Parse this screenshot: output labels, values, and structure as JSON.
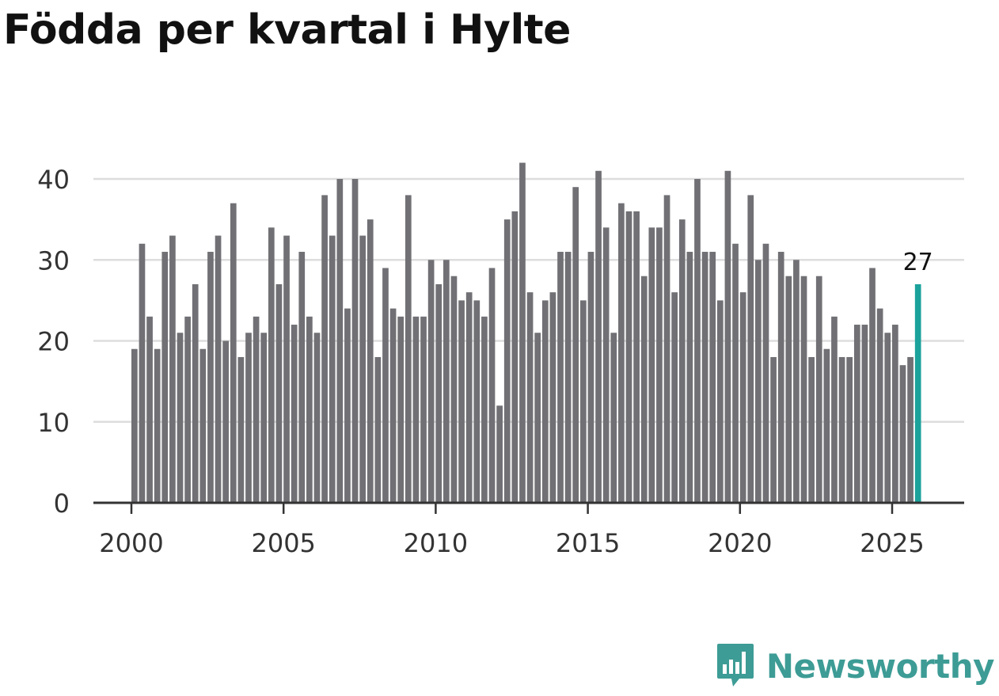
{
  "title": "Födda per kvartal i Hylte",
  "brand": {
    "name": "Newsworthy",
    "logo_icon": "bar-chart-bubble-icon",
    "color": "#3d9c95"
  },
  "chart_data": {
    "type": "bar",
    "title": "Födda per kvartal i Hylte",
    "xlabel": "",
    "ylabel": "",
    "ylim": [
      0,
      44
    ],
    "yticks": [
      0,
      10,
      20,
      30,
      40
    ],
    "xticks": [
      2000,
      2005,
      2010,
      2015,
      2020,
      2025
    ],
    "x_start": 2000,
    "x_end_view": 2027.2,
    "grid": true,
    "bar_color": "#707075",
    "highlight_color": "#1aa29b",
    "highlight_index": 103,
    "highlight_label": "27",
    "values": [
      19,
      32,
      23,
      19,
      31,
      33,
      21,
      23,
      27,
      19,
      31,
      33,
      20,
      37,
      18,
      21,
      23,
      21,
      34,
      27,
      33,
      22,
      31,
      23,
      21,
      38,
      33,
      40,
      24,
      40,
      33,
      35,
      18,
      29,
      24,
      23,
      38,
      23,
      23,
      30,
      27,
      30,
      28,
      25,
      26,
      25,
      23,
      29,
      12,
      35,
      36,
      42,
      26,
      21,
      25,
      26,
      31,
      31,
      39,
      25,
      31,
      41,
      34,
      21,
      37,
      36,
      36,
      28,
      34,
      34,
      38,
      26,
      35,
      31,
      40,
      31,
      31,
      25,
      41,
      32,
      26,
      38,
      30,
      32,
      18,
      31,
      28,
      30,
      28,
      18,
      28,
      19,
      23,
      18,
      18,
      22,
      22,
      29,
      24,
      21,
      22,
      17,
      18,
      27
    ]
  }
}
